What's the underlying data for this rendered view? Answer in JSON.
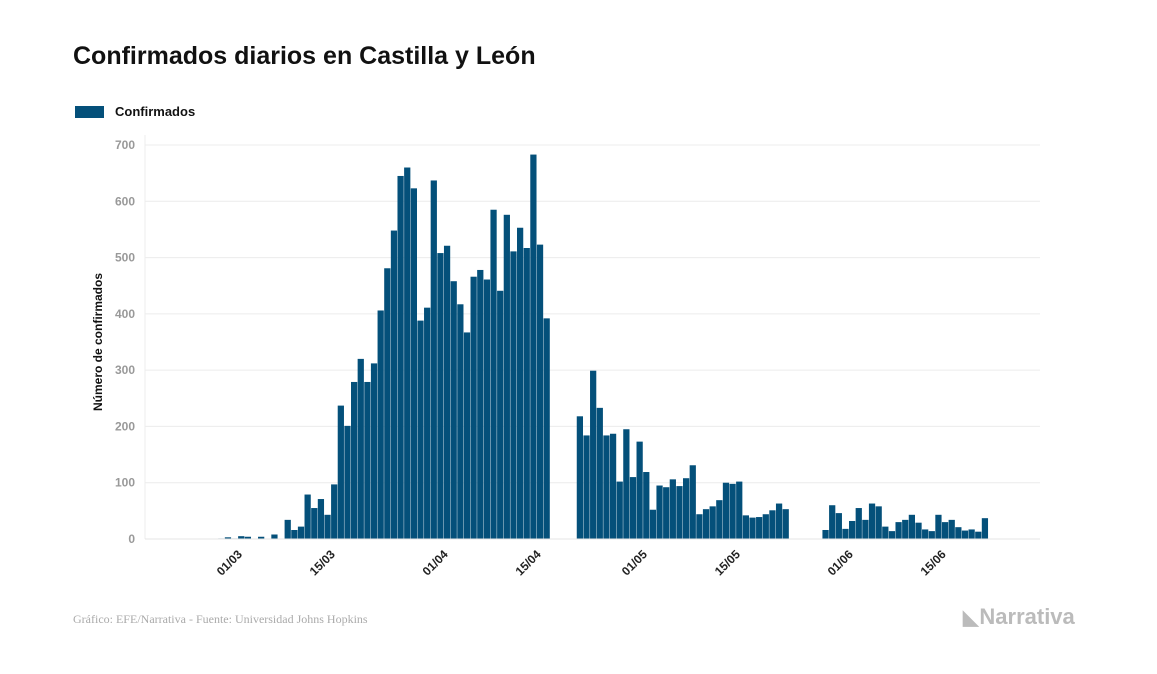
{
  "chart_data": {
    "type": "bar",
    "title": "Confirmados diarios en Castilla y León",
    "xlabel": "",
    "ylabel": "Número de confirmados",
    "ylim": [
      0,
      700
    ],
    "yticks": [
      0,
      100,
      200,
      300,
      400,
      500,
      600,
      700
    ],
    "grid": true,
    "legend_position": "top-left",
    "xtick_labels": [
      {
        "label": "01/03",
        "index": 7
      },
      {
        "label": "15/03",
        "index": 21
      },
      {
        "label": "01/04",
        "index": 38
      },
      {
        "label": "15/04",
        "index": 52
      },
      {
        "label": "01/05",
        "index": 68
      },
      {
        "label": "15/05",
        "index": 82
      },
      {
        "label": "01/06",
        "index": 99
      },
      {
        "label": "15/06",
        "index": 113
      }
    ],
    "series": [
      {
        "name": "Confirmados",
        "color": "#04507a",
        "values": [
          0,
          0,
          0,
          0,
          0,
          1,
          3,
          1,
          5,
          4,
          0,
          4,
          0,
          8,
          0,
          34,
          16,
          22,
          79,
          55,
          71,
          43,
          97,
          237,
          201,
          279,
          320,
          279,
          312,
          406,
          481,
          548,
          645,
          660,
          623,
          388,
          411,
          637,
          508,
          521,
          458,
          417,
          367,
          466,
          478,
          461,
          585,
          441,
          576,
          511,
          553,
          517,
          683,
          523,
          392,
          null,
          null,
          null,
          null,
          218,
          184,
          299,
          233,
          184,
          187,
          102,
          195,
          110,
          173,
          119,
          52,
          95,
          92,
          106,
          94,
          108,
          131,
          44,
          53,
          58,
          69,
          100,
          98,
          102,
          42,
          38,
          39,
          44,
          51,
          63,
          53,
          null,
          null,
          null,
          null,
          null,
          16,
          60,
          46,
          18,
          32,
          55,
          34,
          63,
          58,
          22,
          14,
          30,
          34,
          43,
          29,
          17,
          14,
          43,
          30,
          34,
          21,
          15,
          17,
          13,
          37
        ]
      }
    ]
  },
  "footer": {
    "source": "Gráfico: EFE/Narrativa - Fuente: Universidad Johns Hopkins",
    "logo": "Narrativa"
  }
}
